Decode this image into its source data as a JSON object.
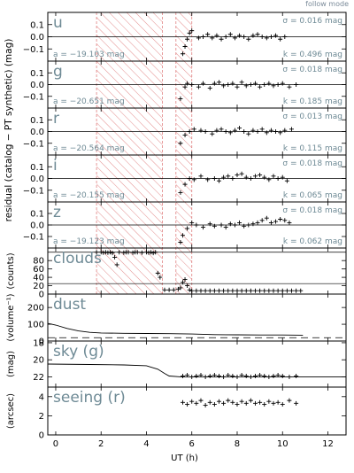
{
  "header": {
    "mode_label": "follow mode"
  },
  "colors": {
    "teal": "#6e8a95",
    "hatch": "#e08080",
    "axis": "#000000",
    "marker": "#000000"
  },
  "x_axis": {
    "label": "UT   (h)",
    "range": [
      -0.35,
      12.8
    ],
    "tick_labels": [
      "0",
      "2",
      "4",
      "6",
      "8",
      "10",
      "12"
    ],
    "tick_values": [
      0,
      2,
      4,
      6,
      8,
      10,
      12
    ]
  },
  "chart_data": {
    "type": "scatter",
    "shared_ylabel": "residual (catalog − PT synthetic) (mag)",
    "xlabel": "UT   (h)",
    "hatched_regions": [
      [
        1.8,
        4.7
      ],
      [
        5.3,
        6.0
      ]
    ],
    "panels": [
      {
        "id": "u",
        "band": "u",
        "sigma": "σ = 0.016 mag",
        "a": "a = −19.103 mag",
        "k": "k = 0.496 mag",
        "ylim": [
          -0.2,
          0.2
        ],
        "ticks": [
          "0.1",
          "0.0",
          "−0.1"
        ],
        "tick_values": [
          0.1,
          0.0,
          -0.1
        ],
        "points": [
          [
            5.6,
            -0.14
          ],
          [
            5.7,
            -0.08
          ],
          [
            5.8,
            -0.02
          ],
          [
            5.9,
            0.03
          ],
          [
            6.0,
            0.05
          ],
          [
            6.3,
            -0.01
          ],
          [
            6.5,
            0.0
          ],
          [
            6.7,
            0.02
          ],
          [
            6.9,
            -0.01
          ],
          [
            7.1,
            0.01
          ],
          [
            7.3,
            -0.02
          ],
          [
            7.5,
            0.0
          ],
          [
            7.7,
            0.02
          ],
          [
            7.9,
            -0.01
          ],
          [
            8.1,
            0.01
          ],
          [
            8.3,
            0.0
          ],
          [
            8.5,
            -0.02
          ],
          [
            8.7,
            0.01
          ],
          [
            8.9,
            0.02
          ],
          [
            9.1,
            0.0
          ],
          [
            9.3,
            -0.01
          ],
          [
            9.5,
            0.0
          ],
          [
            9.7,
            0.01
          ],
          [
            9.9,
            -0.02
          ],
          [
            10.1,
            0.0
          ]
        ]
      },
      {
        "id": "g",
        "band": "g",
        "sigma": "σ = 0.018 mag",
        "a": "a = −20.651 mag",
        "k": "k = 0.185 mag",
        "ylim": [
          -0.2,
          0.2
        ],
        "ticks": [
          "0.1",
          "0.0",
          "−0.1"
        ],
        "tick_values": [
          0.1,
          0.0,
          -0.1
        ],
        "points": [
          [
            5.5,
            -0.12
          ],
          [
            5.7,
            -0.02
          ],
          [
            5.8,
            0.01
          ],
          [
            6.0,
            0.0
          ],
          [
            6.3,
            -0.02
          ],
          [
            6.5,
            0.01
          ],
          [
            6.8,
            -0.03
          ],
          [
            7.0,
            0.01
          ],
          [
            7.2,
            0.02
          ],
          [
            7.4,
            -0.01
          ],
          [
            7.6,
            0.0
          ],
          [
            7.8,
            0.01
          ],
          [
            8.0,
            -0.02
          ],
          [
            8.2,
            0.02
          ],
          [
            8.4,
            -0.01
          ],
          [
            8.6,
            0.0
          ],
          [
            8.8,
            0.01
          ],
          [
            9.0,
            -0.02
          ],
          [
            9.2,
            0.0
          ],
          [
            9.4,
            0.01
          ],
          [
            9.6,
            -0.01
          ],
          [
            9.8,
            0.0
          ],
          [
            10.0,
            0.01
          ],
          [
            10.3,
            -0.02
          ],
          [
            10.6,
            0.0
          ]
        ]
      },
      {
        "id": "r",
        "band": "r",
        "sigma": "σ = 0.013 mag",
        "a": "a = −20.564 mag",
        "k": "k = 0.115 mag",
        "ylim": [
          -0.2,
          0.2
        ],
        "ticks": [
          "0.1",
          "0.0",
          "−0.1"
        ],
        "tick_values": [
          0.1,
          0.0,
          -0.1
        ],
        "points": [
          [
            5.5,
            -0.1
          ],
          [
            5.7,
            -0.03
          ],
          [
            5.9,
            0.0
          ],
          [
            6.1,
            0.02
          ],
          [
            6.4,
            0.01
          ],
          [
            6.6,
            0.0
          ],
          [
            6.9,
            -0.02
          ],
          [
            7.1,
            0.01
          ],
          [
            7.3,
            0.02
          ],
          [
            7.5,
            0.0
          ],
          [
            7.7,
            -0.01
          ],
          [
            7.9,
            0.01
          ],
          [
            8.1,
            0.03
          ],
          [
            8.3,
            0.0
          ],
          [
            8.5,
            -0.02
          ],
          [
            8.7,
            0.01
          ],
          [
            8.9,
            0.0
          ],
          [
            9.1,
            0.02
          ],
          [
            9.3,
            -0.01
          ],
          [
            9.5,
            0.01
          ],
          [
            9.7,
            0.0
          ],
          [
            9.9,
            -0.01
          ],
          [
            10.1,
            0.01
          ],
          [
            10.4,
            0.02
          ]
        ]
      },
      {
        "id": "i",
        "band": "i",
        "sigma": "σ = 0.018 mag",
        "a": "a = −20.155 mag",
        "k": "k = 0.065 mag",
        "ylim": [
          -0.2,
          0.2
        ],
        "ticks": [
          "0.1",
          "0.0",
          "−0.1"
        ],
        "tick_values": [
          0.1,
          0.0,
          -0.1
        ],
        "points": [
          [
            5.5,
            -0.12
          ],
          [
            5.7,
            -0.05
          ],
          [
            5.9,
            0.0
          ],
          [
            6.1,
            -0.01
          ],
          [
            6.4,
            0.02
          ],
          [
            6.7,
            -0.01
          ],
          [
            7.0,
            0.0
          ],
          [
            7.2,
            -0.02
          ],
          [
            7.4,
            0.01
          ],
          [
            7.6,
            0.02
          ],
          [
            7.8,
            0.0
          ],
          [
            8.0,
            0.03
          ],
          [
            8.2,
            0.04
          ],
          [
            8.4,
            0.01
          ],
          [
            8.6,
            0.0
          ],
          [
            8.8,
            0.02
          ],
          [
            9.0,
            0.03
          ],
          [
            9.2,
            0.01
          ],
          [
            9.4,
            -0.01
          ],
          [
            9.6,
            0.02
          ],
          [
            9.8,
            0.0
          ],
          [
            10.0,
            0.01
          ],
          [
            10.2,
            -0.02
          ]
        ]
      },
      {
        "id": "z",
        "band": "z",
        "sigma": "σ = 0.018 mag",
        "a": "a = −19.123 mag",
        "k": "k = 0.062 mag",
        "ylim": [
          -0.2,
          0.2
        ],
        "ticks": [
          "0.1",
          "0.0",
          "−0.1"
        ],
        "tick_values": [
          0.1,
          0.0,
          -0.1
        ],
        "points": [
          [
            5.5,
            -0.15
          ],
          [
            5.6,
            -0.09
          ],
          [
            5.8,
            -0.03
          ],
          [
            6.0,
            0.02
          ],
          [
            6.2,
            0.0
          ],
          [
            6.5,
            -0.02
          ],
          [
            6.8,
            0.01
          ],
          [
            7.0,
            -0.01
          ],
          [
            7.3,
            0.0
          ],
          [
            7.5,
            -0.02
          ],
          [
            7.7,
            0.01
          ],
          [
            7.9,
            0.0
          ],
          [
            8.1,
            0.02
          ],
          [
            8.3,
            -0.01
          ],
          [
            8.5,
            0.0
          ],
          [
            8.7,
            0.01
          ],
          [
            8.9,
            0.02
          ],
          [
            9.1,
            0.04
          ],
          [
            9.3,
            0.06
          ],
          [
            9.5,
            0.02
          ],
          [
            9.7,
            0.03
          ],
          [
            9.9,
            0.05
          ],
          [
            10.1,
            0.04
          ],
          [
            10.3,
            0.02
          ]
        ]
      },
      {
        "id": "clouds",
        "band": "clouds",
        "ylabel": "(counts)",
        "ylim": [
          0,
          110
        ],
        "ticks": [
          "80",
          "60",
          "40",
          "20",
          "0"
        ],
        "tick_values": [
          80,
          60,
          40,
          20,
          0
        ],
        "hlines": [
          100,
          25
        ],
        "points": [
          [
            1.8,
            100
          ],
          [
            2.0,
            100
          ],
          [
            2.1,
            99
          ],
          [
            2.2,
            100
          ],
          [
            2.3,
            99
          ],
          [
            2.4,
            100
          ],
          [
            2.5,
            98
          ],
          [
            2.6,
            88
          ],
          [
            2.7,
            70
          ],
          [
            2.8,
            100
          ],
          [
            3.0,
            99
          ],
          [
            3.1,
            100
          ],
          [
            3.2,
            100
          ],
          [
            3.4,
            99
          ],
          [
            3.5,
            100
          ],
          [
            3.6,
            100
          ],
          [
            3.8,
            99
          ],
          [
            4.0,
            100
          ],
          [
            4.1,
            99
          ],
          [
            4.2,
            100
          ],
          [
            4.3,
            98
          ],
          [
            4.4,
            100
          ],
          [
            4.5,
            50
          ],
          [
            4.6,
            40
          ],
          [
            4.8,
            10
          ],
          [
            5.0,
            10
          ],
          [
            5.2,
            10
          ],
          [
            5.4,
            12
          ],
          [
            5.5,
            15
          ],
          [
            5.6,
            28
          ],
          [
            5.7,
            35
          ],
          [
            5.8,
            20
          ],
          [
            5.9,
            10
          ],
          [
            6.0,
            8
          ],
          [
            6.2,
            8
          ],
          [
            6.4,
            8
          ],
          [
            6.6,
            8
          ],
          [
            6.8,
            8
          ],
          [
            7.0,
            8
          ],
          [
            7.2,
            8
          ],
          [
            7.4,
            8
          ],
          [
            7.6,
            8
          ],
          [
            7.8,
            8
          ],
          [
            8.0,
            8
          ],
          [
            8.2,
            8
          ],
          [
            8.4,
            8
          ],
          [
            8.6,
            8
          ],
          [
            8.8,
            8
          ],
          [
            9.0,
            8
          ],
          [
            9.2,
            8
          ],
          [
            9.4,
            8
          ],
          [
            9.6,
            8
          ],
          [
            9.8,
            8
          ],
          [
            10.0,
            8
          ],
          [
            10.2,
            8
          ],
          [
            10.4,
            8
          ],
          [
            10.6,
            8
          ],
          [
            10.8,
            8
          ]
        ]
      },
      {
        "id": "dust",
        "band": "dust",
        "ylabel": "(volume⁻¹)",
        "ylim": [
          0,
          280
        ],
        "ticks": [
          "200",
          "100",
          "0"
        ],
        "tick_values": [
          200,
          100,
          0
        ],
        "line": [
          [
            -0.35,
            105
          ],
          [
            0,
            95
          ],
          [
            0.5,
            75
          ],
          [
            1.0,
            60
          ],
          [
            1.5,
            52
          ],
          [
            2.0,
            48
          ],
          [
            3.0,
            46
          ],
          [
            4.0,
            45
          ],
          [
            5.0,
            44
          ],
          [
            6.0,
            42
          ],
          [
            7.0,
            38
          ],
          [
            8.0,
            37
          ],
          [
            9.0,
            36
          ],
          [
            10.0,
            36
          ],
          [
            10.9,
            35
          ]
        ],
        "dashed": 20
      },
      {
        "id": "sky",
        "band": "sky (g)",
        "ylabel": "(mag)",
        "ylim": [
          23.2,
          17.8
        ],
        "ticks": [
          "18",
          "20",
          "22"
        ],
        "tick_values": [
          18,
          20,
          22
        ],
        "line": [
          [
            -0.35,
            20.5
          ],
          [
            1.5,
            20.55
          ],
          [
            3.0,
            20.6
          ],
          [
            4.0,
            20.7
          ],
          [
            4.5,
            21.1
          ],
          [
            4.8,
            21.6
          ],
          [
            5.0,
            21.9
          ],
          [
            5.5,
            22.0
          ],
          [
            6.0,
            22.0
          ],
          [
            8.0,
            22.0
          ],
          [
            10.0,
            22.0
          ],
          [
            12.8,
            22.0
          ]
        ],
        "points": [
          [
            5.6,
            21.9
          ],
          [
            5.8,
            21.8
          ],
          [
            6.0,
            22.0
          ],
          [
            6.2,
            21.9
          ],
          [
            6.4,
            21.8
          ],
          [
            6.6,
            22.0
          ],
          [
            6.8,
            21.9
          ],
          [
            7.0,
            21.8
          ],
          [
            7.2,
            21.9
          ],
          [
            7.4,
            22.0
          ],
          [
            7.6,
            21.8
          ],
          [
            7.8,
            21.9
          ],
          [
            8.0,
            22.0
          ],
          [
            8.2,
            21.8
          ],
          [
            8.4,
            21.9
          ],
          [
            8.6,
            22.0
          ],
          [
            8.8,
            21.9
          ],
          [
            9.0,
            21.8
          ],
          [
            9.2,
            21.9
          ],
          [
            9.4,
            22.0
          ],
          [
            9.6,
            21.9
          ],
          [
            9.8,
            21.8
          ],
          [
            10.0,
            21.9
          ],
          [
            10.3,
            22.0
          ],
          [
            10.6,
            21.9
          ]
        ]
      },
      {
        "id": "seeing",
        "band": "seeing (r)",
        "ylabel": "(arcsec)",
        "ylim": [
          0,
          5
        ],
        "ticks": [
          "4",
          "2",
          "0"
        ],
        "tick_values": [
          4,
          2,
          0
        ],
        "points": [
          [
            5.6,
            3.4
          ],
          [
            5.8,
            3.2
          ],
          [
            6.0,
            3.5
          ],
          [
            6.2,
            3.3
          ],
          [
            6.4,
            3.6
          ],
          [
            6.6,
            3.1
          ],
          [
            6.8,
            3.4
          ],
          [
            7.0,
            3.2
          ],
          [
            7.2,
            3.5
          ],
          [
            7.4,
            3.3
          ],
          [
            7.6,
            3.6
          ],
          [
            7.8,
            3.4
          ],
          [
            8.0,
            3.2
          ],
          [
            8.2,
            3.5
          ],
          [
            8.4,
            3.3
          ],
          [
            8.6,
            3.6
          ],
          [
            8.8,
            3.3
          ],
          [
            9.0,
            3.4
          ],
          [
            9.2,
            3.2
          ],
          [
            9.4,
            3.5
          ],
          [
            9.6,
            3.3
          ],
          [
            9.8,
            3.4
          ],
          [
            10.0,
            3.2
          ],
          [
            10.3,
            3.6
          ],
          [
            10.6,
            3.3
          ]
        ]
      }
    ]
  }
}
